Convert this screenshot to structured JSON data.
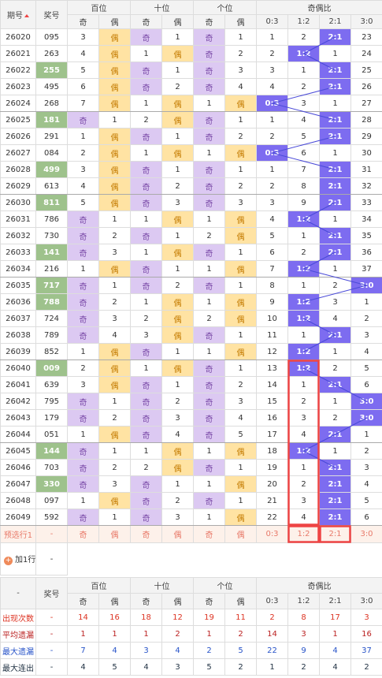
{
  "header": {
    "issue": "期号",
    "number": "奖号",
    "groups": [
      "百位",
      "十位",
      "个位",
      "奇偶比"
    ],
    "subs": [
      "奇",
      "偶",
      "奇",
      "偶",
      "奇",
      "偶",
      "0:3",
      "1:2",
      "2:1",
      "3:0"
    ]
  },
  "rows": [
    {
      "issue": "26020",
      "number": "095",
      "cells": [
        3,
        "偶",
        "奇",
        1,
        "奇",
        1,
        1,
        2,
        "2:1",
        23
      ]
    },
    {
      "issue": "26021",
      "number": "263",
      "cells": [
        4,
        "偶",
        1,
        "偶",
        "奇",
        2,
        2,
        "1:2",
        1,
        24
      ]
    },
    {
      "issue": "26022",
      "number": "255",
      "highlight": true,
      "cells": [
        5,
        "偶",
        "奇",
        1,
        "奇",
        3,
        3,
        1,
        "2:1",
        25
      ]
    },
    {
      "issue": "26023",
      "number": "495",
      "cells": [
        6,
        "偶",
        "奇",
        2,
        "奇",
        4,
        4,
        2,
        "2:1",
        26
      ]
    },
    {
      "issue": "26024",
      "number": "268",
      "cells": [
        7,
        "偶",
        1,
        "偶",
        1,
        "偶",
        "0:3",
        3,
        1,
        27
      ]
    },
    {
      "issue": "26025",
      "number": "181",
      "highlight": true,
      "cells": [
        "奇",
        1,
        2,
        "偶",
        "奇",
        1,
        1,
        4,
        "2:1",
        28
      ]
    },
    {
      "issue": "26026",
      "number": "291",
      "cells": [
        1,
        "偶",
        "奇",
        1,
        "奇",
        2,
        2,
        5,
        "2:1",
        29
      ]
    },
    {
      "issue": "26027",
      "number": "084",
      "cells": [
        2,
        "偶",
        1,
        "偶",
        1,
        "偶",
        "0:3",
        6,
        1,
        30
      ]
    },
    {
      "issue": "26028",
      "number": "499",
      "highlight": true,
      "cells": [
        3,
        "偶",
        "奇",
        1,
        "奇",
        1,
        1,
        7,
        "2:1",
        31
      ]
    },
    {
      "issue": "26029",
      "number": "613",
      "cells": [
        4,
        "偶",
        "奇",
        2,
        "奇",
        2,
        2,
        8,
        "2:1",
        32
      ]
    },
    {
      "issue": "26030",
      "number": "811",
      "highlight": true,
      "cells": [
        5,
        "偶",
        "奇",
        3,
        "奇",
        3,
        3,
        9,
        "2:1",
        33
      ]
    },
    {
      "issue": "26031",
      "number": "786",
      "cells": [
        "奇",
        1,
        1,
        "偶",
        1,
        "偶",
        4,
        "1:2",
        1,
        34
      ]
    },
    {
      "issue": "26032",
      "number": "730",
      "cells": [
        "奇",
        2,
        "奇",
        1,
        2,
        "偶",
        5,
        1,
        "2:1",
        35
      ]
    },
    {
      "issue": "26033",
      "number": "141",
      "highlight": true,
      "cells": [
        "奇",
        3,
        1,
        "偶",
        "奇",
        1,
        6,
        2,
        "2:1",
        36
      ]
    },
    {
      "issue": "26034",
      "number": "216",
      "cells": [
        1,
        "偶",
        "奇",
        1,
        1,
        "偶",
        7,
        "1:2",
        1,
        37
      ]
    },
    {
      "issue": "26035",
      "number": "717",
      "highlight": true,
      "cells": [
        "奇",
        1,
        "奇",
        2,
        "奇",
        1,
        8,
        1,
        2,
        "3:0"
      ]
    },
    {
      "issue": "26036",
      "number": "788",
      "highlight": true,
      "cells": [
        "奇",
        2,
        1,
        "偶",
        1,
        "偶",
        9,
        "1:2",
        3,
        1
      ]
    },
    {
      "issue": "26037",
      "number": "724",
      "cells": [
        "奇",
        3,
        2,
        "偶",
        2,
        "偶",
        10,
        "1:2",
        4,
        2
      ]
    },
    {
      "issue": "26038",
      "number": "789",
      "cells": [
        "奇",
        4,
        3,
        "偶",
        "奇",
        1,
        11,
        1,
        "2:1",
        3
      ]
    },
    {
      "issue": "26039",
      "number": "852",
      "cells": [
        1,
        "偶",
        "奇",
        1,
        1,
        "偶",
        12,
        "1:2",
        1,
        4
      ]
    },
    {
      "issue": "26040",
      "number": "009",
      "highlight": true,
      "cells": [
        2,
        "偶",
        1,
        "偶",
        "奇",
        1,
        13,
        "1:2",
        2,
        5
      ]
    },
    {
      "issue": "26041",
      "number": "639",
      "cells": [
        3,
        "偶",
        "奇",
        1,
        "奇",
        2,
        14,
        1,
        "2:1",
        6
      ]
    },
    {
      "issue": "26042",
      "number": "795",
      "cells": [
        "奇",
        1,
        "奇",
        2,
        "奇",
        3,
        15,
        2,
        1,
        "3:0"
      ]
    },
    {
      "issue": "26043",
      "number": "179",
      "cells": [
        "奇",
        2,
        "奇",
        3,
        "奇",
        4,
        16,
        3,
        2,
        "3:0"
      ]
    },
    {
      "issue": "26044",
      "number": "051",
      "cells": [
        1,
        "偶",
        "奇",
        4,
        "奇",
        5,
        17,
        4,
        "2:1",
        1
      ]
    },
    {
      "issue": "26045",
      "number": "144",
      "highlight": true,
      "cells": [
        "奇",
        1,
        1,
        "偶",
        1,
        "偶",
        18,
        "1:2",
        1,
        2
      ]
    },
    {
      "issue": "26046",
      "number": "703",
      "cells": [
        "奇",
        2,
        2,
        "偶",
        "奇",
        1,
        19,
        1,
        "2:1",
        3
      ]
    },
    {
      "issue": "26047",
      "number": "330",
      "highlight": true,
      "cells": [
        "奇",
        3,
        "奇",
        1,
        1,
        "偶",
        20,
        2,
        "2:1",
        4
      ]
    },
    {
      "issue": "26048",
      "number": "097",
      "cells": [
        1,
        "偶",
        "奇",
        2,
        "奇",
        1,
        21,
        3,
        "2:1",
        5
      ]
    },
    {
      "issue": "26049",
      "number": "592",
      "cells": [
        "奇",
        1,
        "奇",
        3,
        1,
        "偶",
        22,
        4,
        "2:1",
        6
      ]
    }
  ],
  "preselect": {
    "label": "预选行1",
    "number": "-",
    "cells": [
      "奇",
      "偶",
      "奇",
      "偶",
      "奇",
      "偶",
      "0:3",
      "1:2",
      "2:1",
      "3:0"
    ]
  },
  "add_row": {
    "label": "加1行",
    "value": "-"
  },
  "footer": {
    "corner": "-",
    "number": "奖号",
    "groups": [
      "百位",
      "十位",
      "个位",
      "奇偶比"
    ],
    "subs": [
      "奇",
      "偶",
      "奇",
      "偶",
      "奇",
      "偶",
      "0:3",
      "1:2",
      "2:1",
      "3:0"
    ]
  },
  "stats": [
    {
      "label": "出现次数",
      "number": "-",
      "values": [
        14,
        16,
        18,
        12,
        19,
        11,
        2,
        8,
        17,
        3
      ]
    },
    {
      "label": "平均遗漏",
      "number": "-",
      "values": [
        1,
        1,
        1,
        2,
        1,
        2,
        14,
        3,
        1,
        16
      ]
    },
    {
      "label": "最大遗漏",
      "number": "-",
      "values": [
        7,
        4,
        3,
        4,
        2,
        5,
        22,
        9,
        4,
        37
      ]
    },
    {
      "label": "最大连出",
      "number": "-",
      "values": [
        4,
        5,
        4,
        3,
        5,
        2,
        1,
        2,
        4,
        2
      ]
    }
  ]
}
